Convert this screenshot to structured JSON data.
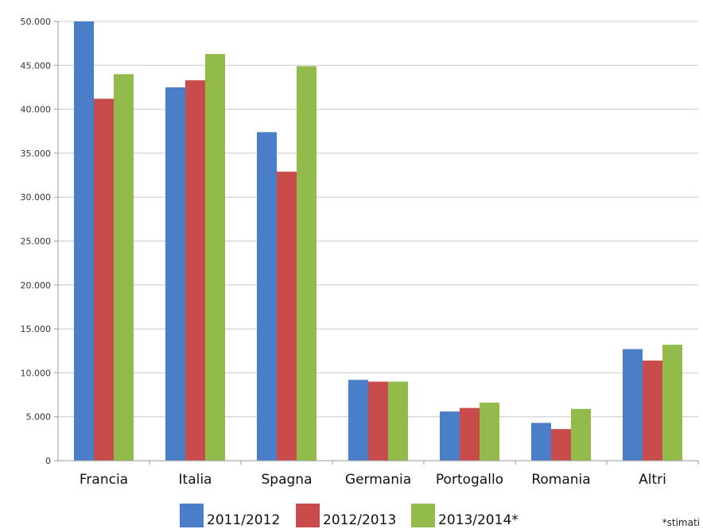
{
  "chart_data": {
    "type": "bar",
    "categories": [
      "Francia",
      "Italia",
      "Spagna",
      "Germania",
      "Portogallo",
      "Romania",
      "Altri"
    ],
    "series": [
      {
        "name": "2011/2012",
        "color": "#4a7ec8",
        "values": [
          50000,
          42500,
          37400,
          9200,
          5600,
          4300,
          12700
        ]
      },
      {
        "name": "2012/2013",
        "color": "#c94c4c",
        "values": [
          41200,
          43300,
          32900,
          9000,
          6000,
          3600,
          11400
        ]
      },
      {
        "name": "2013/2014*",
        "color": "#92bb4c",
        "values": [
          44000,
          46300,
          44900,
          9000,
          6600,
          5900,
          13200
        ]
      }
    ],
    "ylim": [
      0,
      50000
    ],
    "yticks": [
      "0",
      "5.000",
      "10.000",
      "15.000",
      "20.000",
      "25.000",
      "30.000",
      "35.000",
      "40.000",
      "45.000",
      "50.000"
    ],
    "grid": true,
    "legend_position": "bottom",
    "note": "*stimati"
  }
}
